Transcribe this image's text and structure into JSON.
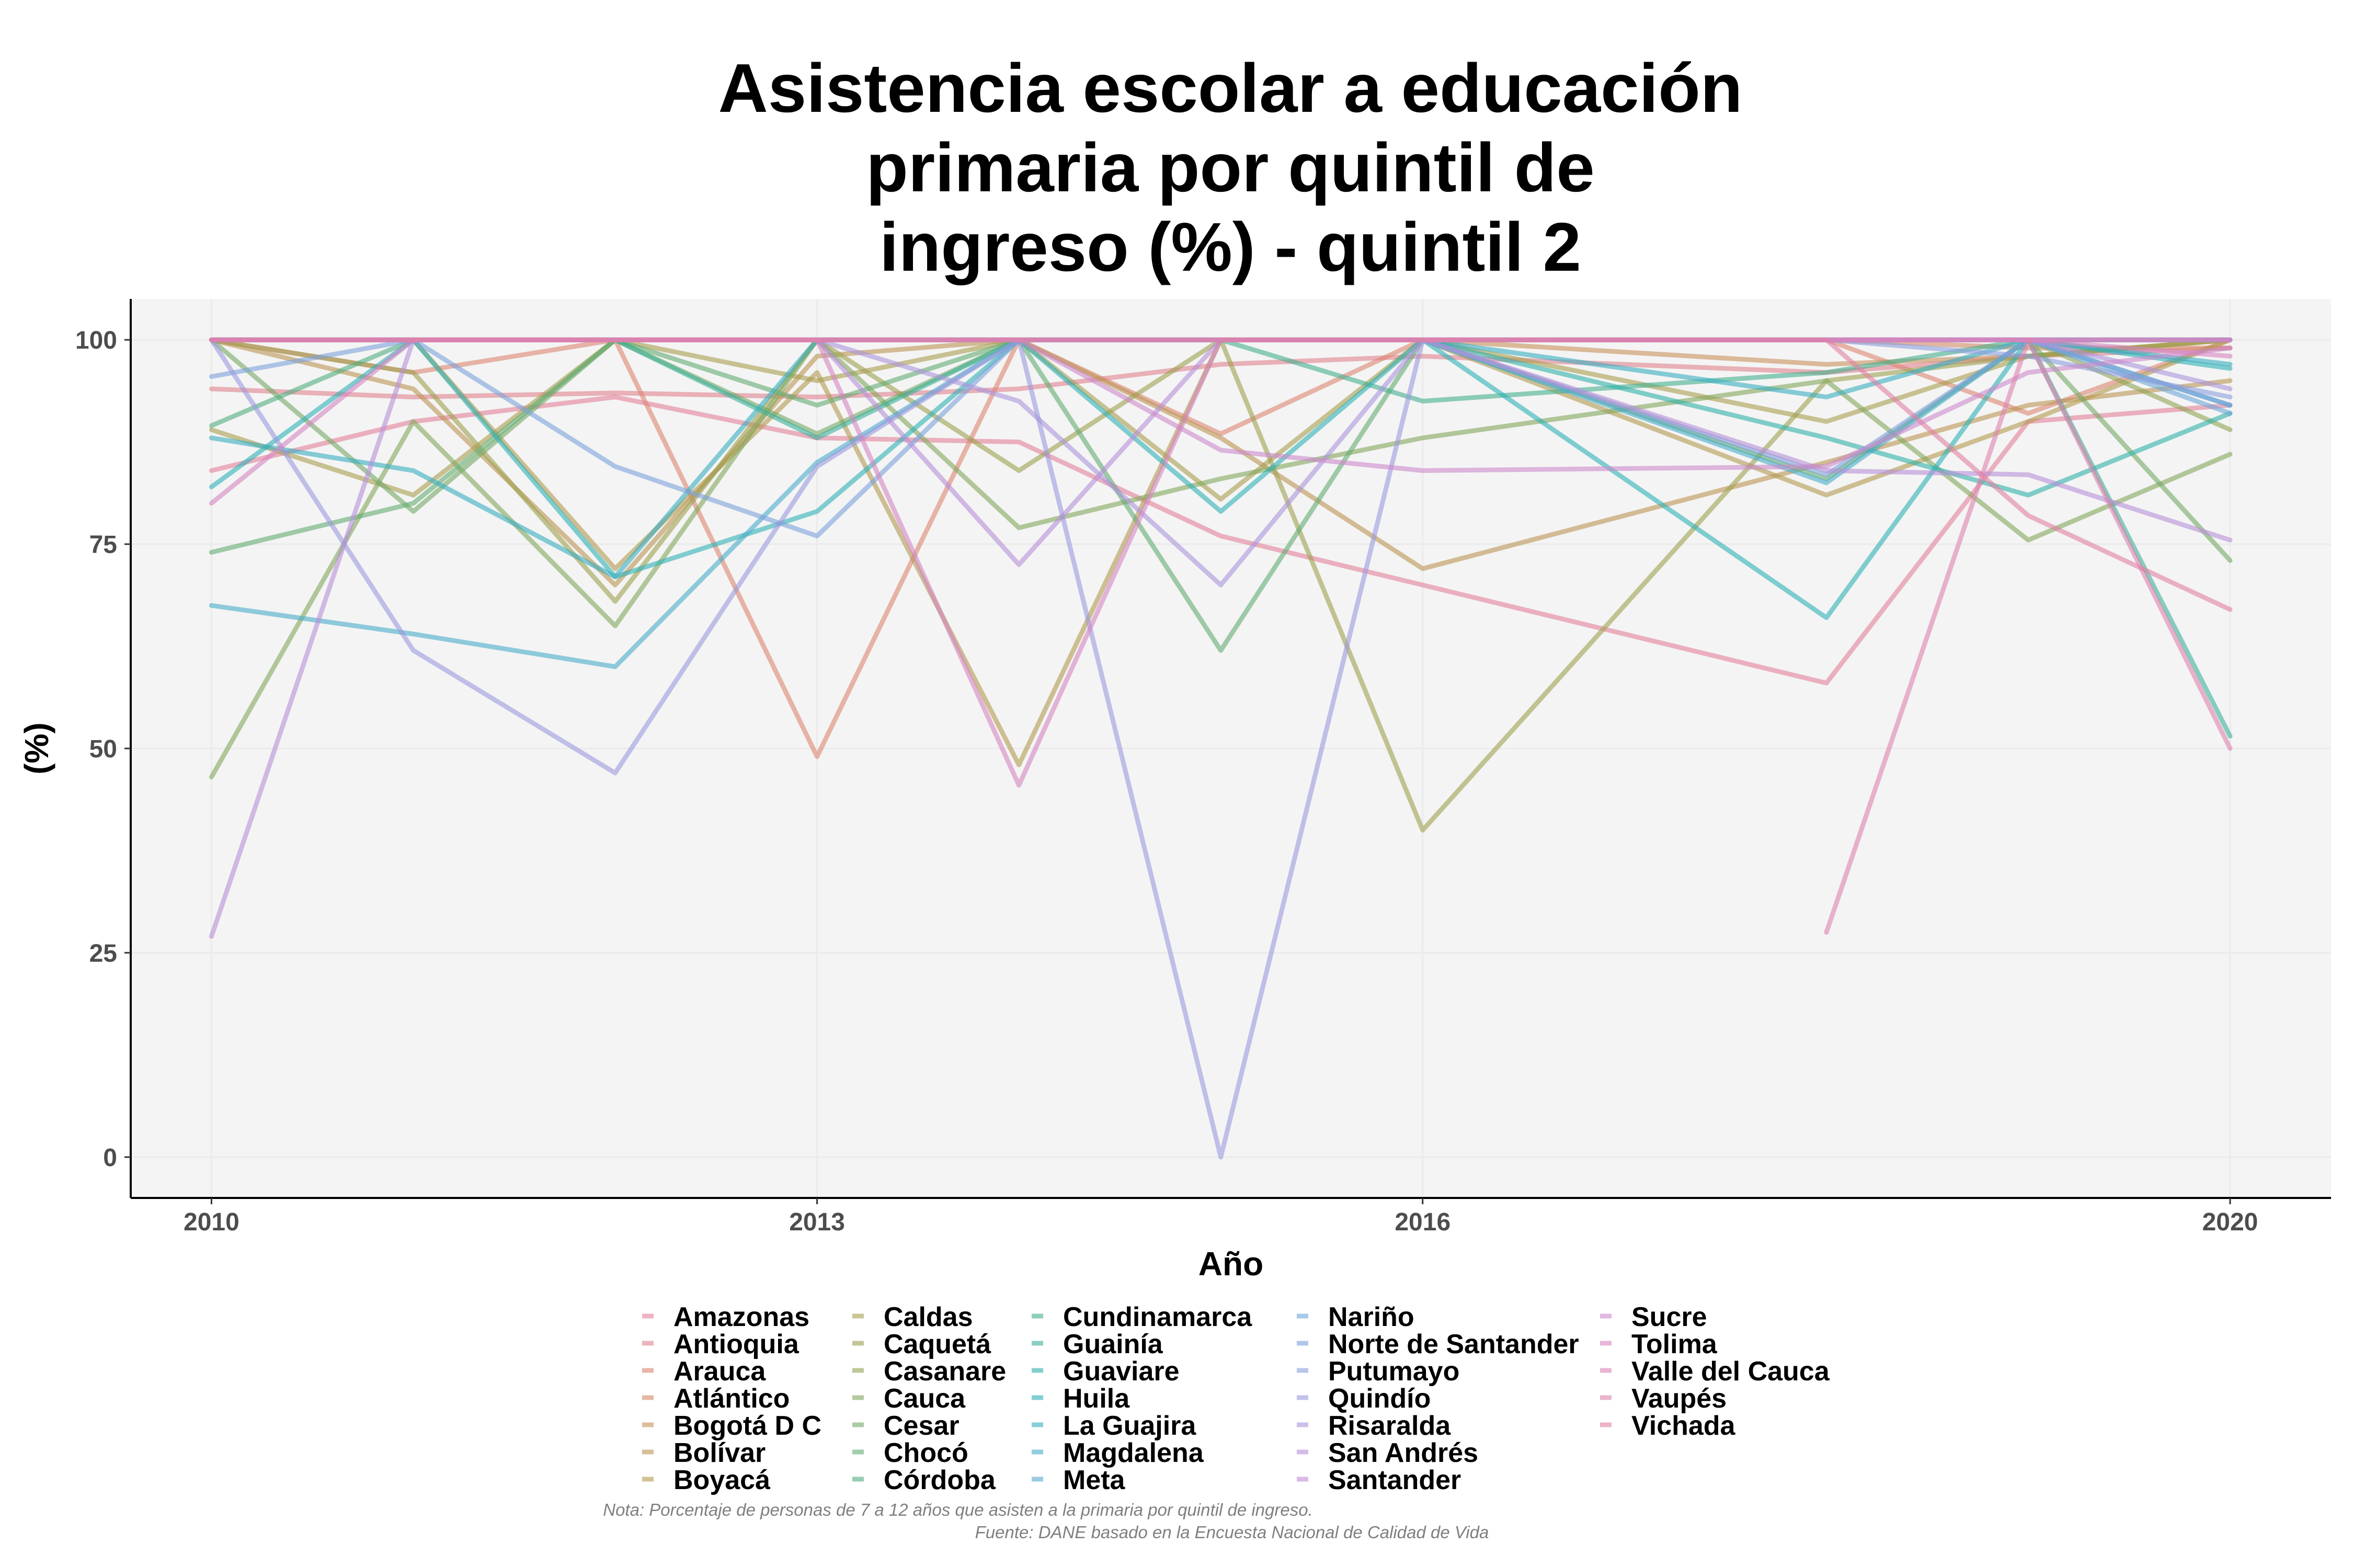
{
  "chart_data": {
    "type": "line",
    "title_lines": [
      "Asistencia escolar a educación",
      "primaria por quintil de",
      "ingreso (%) - quintil 2"
    ],
    "xlabel": "Año",
    "ylabel": "(%)",
    "xlim": [
      2009.6,
      2020.5
    ],
    "ylim": [
      -5,
      105
    ],
    "xticks": [
      2010,
      2013,
      2016,
      2020
    ],
    "yticks": [
      0,
      25,
      50,
      75,
      100
    ],
    "x": [
      2010,
      2011,
      2012,
      2013,
      2014,
      2015,
      2016,
      2018,
      2019,
      2020
    ],
    "grid": true,
    "legend_position": "bottom",
    "caption_lines": [
      "Nota: Porcentaje de personas de 7 a 12 años que asisten a la primaria por quintil de ingreso.",
      "Fuente: DANE basado en la Encuesta Nacional de Calidad de Vida"
    ],
    "series": [
      {
        "name": "Amazonas",
        "color": "#E3819A",
        "values": [
          84,
          90,
          93,
          88,
          87.5,
          76,
          70,
          58,
          90,
          92
        ]
      },
      {
        "name": "Antioquia",
        "color": "#DF828E",
        "values": [
          94,
          93,
          93.5,
          93,
          94,
          97,
          98,
          96,
          98,
          99
        ]
      },
      {
        "name": "Arauca",
        "color": "#DC8672",
        "values": [
          100,
          96,
          100,
          49,
          100,
          88.5,
          100,
          100,
          91,
          100
        ]
      },
      {
        "name": "Atlántico",
        "color": "#D38A67",
        "values": [
          100,
          100,
          100,
          100,
          100,
          100,
          100,
          100,
          99,
          99
        ]
      },
      {
        "name": "Bogotá D C",
        "color": "#C8915C",
        "values": [
          100,
          100,
          100,
          100,
          100,
          100,
          100,
          97,
          98,
          100
        ]
      },
      {
        "name": "Bolívar",
        "color": "#BB9553",
        "values": [
          100,
          94,
          70,
          98,
          100,
          88,
          72,
          85,
          92,
          95
        ]
      },
      {
        "name": "Boyacá",
        "color": "#B39A50",
        "values": [
          100,
          100,
          72,
          96,
          48,
          100,
          100,
          81,
          90,
          100
        ]
      },
      {
        "name": "Caldas",
        "color": "#A89D4F",
        "values": [
          89,
          81,
          100,
          95,
          100,
          80.5,
          100,
          90,
          98,
          100
        ]
      },
      {
        "name": "Caquetá",
        "color": "#9CA04F",
        "values": [
          100,
          96,
          68,
          100,
          84,
          100,
          40,
          95,
          98,
          100
        ]
      },
      {
        "name": "Casanare",
        "color": "#8FA454",
        "values": [
          100,
          100,
          100,
          100,
          100,
          100,
          100,
          100,
          100,
          89
        ]
      },
      {
        "name": "Cauca",
        "color": "#82A75C",
        "values": [
          46.5,
          90,
          65,
          100,
          77,
          83,
          88,
          95,
          75.5,
          86
        ]
      },
      {
        "name": "Cesar",
        "color": "#74A966",
        "values": [
          100,
          79,
          100,
          88.5,
          100,
          100,
          100,
          100,
          100,
          73
        ]
      },
      {
        "name": "Chocó",
        "color": "#62AB72",
        "values": [
          74,
          80,
          100,
          92,
          100,
          62,
          100,
          83,
          100,
          100
        ]
      },
      {
        "name": "Córdoba",
        "color": "#51AD80",
        "values": [
          89.5,
          100,
          100,
          100,
          100,
          100,
          100,
          100,
          100,
          100
        ]
      },
      {
        "name": "Cundinamarca",
        "color": "#45AF8E",
        "values": [
          100,
          100,
          100,
          100,
          100,
          100,
          92.5,
          96,
          100,
          100
        ]
      },
      {
        "name": "Guainía",
        "color": "#3AB09B",
        "values": [
          100,
          100,
          100,
          88,
          100,
          100,
          100,
          100,
          100,
          51.5
        ]
      },
      {
        "name": "Guaviare",
        "color": "#31B1A8",
        "values": [
          100,
          100,
          100,
          100,
          100,
          100,
          100,
          88,
          81,
          91
        ]
      },
      {
        "name": "Huila",
        "color": "#2FB0B5",
        "values": [
          82,
          100,
          71,
          79,
          100,
          79,
          100,
          66,
          100,
          96.5
        ]
      },
      {
        "name": "La Guajira",
        "color": "#38AEC0",
        "values": [
          88,
          84,
          71,
          100,
          100,
          100,
          100,
          93,
          100,
          97
        ]
      },
      {
        "name": "Magdalena",
        "color": "#47ACC9",
        "values": [
          67.5,
          64,
          60,
          85,
          100,
          100,
          100,
          82.5,
          100,
          92
        ]
      },
      {
        "name": "Meta",
        "color": "#58A9D1",
        "values": [
          100,
          100,
          100,
          100,
          100,
          100,
          100,
          100,
          100,
          100
        ]
      },
      {
        "name": "Nariño",
        "color": "#6AA6D7",
        "values": [
          100,
          100,
          100,
          100,
          100,
          100,
          100,
          100,
          100,
          91
        ]
      },
      {
        "name": "Norte de Santander",
        "color": "#7BA2DB",
        "values": [
          95.5,
          100,
          84.5,
          76,
          100,
          100,
          100,
          83.5,
          100,
          92
        ]
      },
      {
        "name": "Putumayo",
        "color": "#8C9EDD",
        "values": [
          100,
          100,
          100,
          100,
          100,
          100,
          100,
          100,
          98,
          93
        ]
      },
      {
        "name": "Quindío",
        "color": "#9B99DD",
        "values": [
          100,
          62,
          47,
          84.5,
          100,
          0,
          100,
          100,
          100,
          100
        ]
      },
      {
        "name": "Risaralda",
        "color": "#AA94DB",
        "values": [
          100,
          100,
          100,
          100,
          92.5,
          70,
          100,
          100,
          100,
          94
        ]
      },
      {
        "name": "San Andrés",
        "color": "#B68FD7",
        "values": [
          27,
          100,
          100,
          100,
          72.5,
          100,
          100,
          84,
          83.5,
          75.5
        ]
      },
      {
        "name": "Santander",
        "color": "#C28BD2",
        "values": [
          100,
          100,
          100,
          100,
          100,
          100,
          100,
          100,
          100,
          100
        ]
      },
      {
        "name": "Sucre",
        "color": "#CC88CB",
        "values": [
          100,
          100,
          100,
          100,
          100,
          86.5,
          84,
          84.5,
          96,
          99
        ]
      },
      {
        "name": "Tolima",
        "color": "#D485C2",
        "values": [
          80,
          100,
          100,
          100,
          45.5,
          100,
          100,
          100,
          100,
          98
        ]
      },
      {
        "name": "Valle del Cauca",
        "color": "#DA83B8",
        "values": [
          100,
          100,
          100,
          100,
          100,
          100,
          100,
          100,
          100,
          100
        ]
      },
      {
        "name": "Vaupés",
        "color": "#DE82AD",
        "values": [
          null,
          null,
          null,
          null,
          null,
          null,
          null,
          27.5,
          100,
          50
        ]
      },
      {
        "name": "Vichada",
        "color": "#E081A3",
        "values": [
          100,
          100,
          100,
          100,
          100,
          100,
          100,
          100,
          78.5,
          67
        ]
      }
    ]
  }
}
